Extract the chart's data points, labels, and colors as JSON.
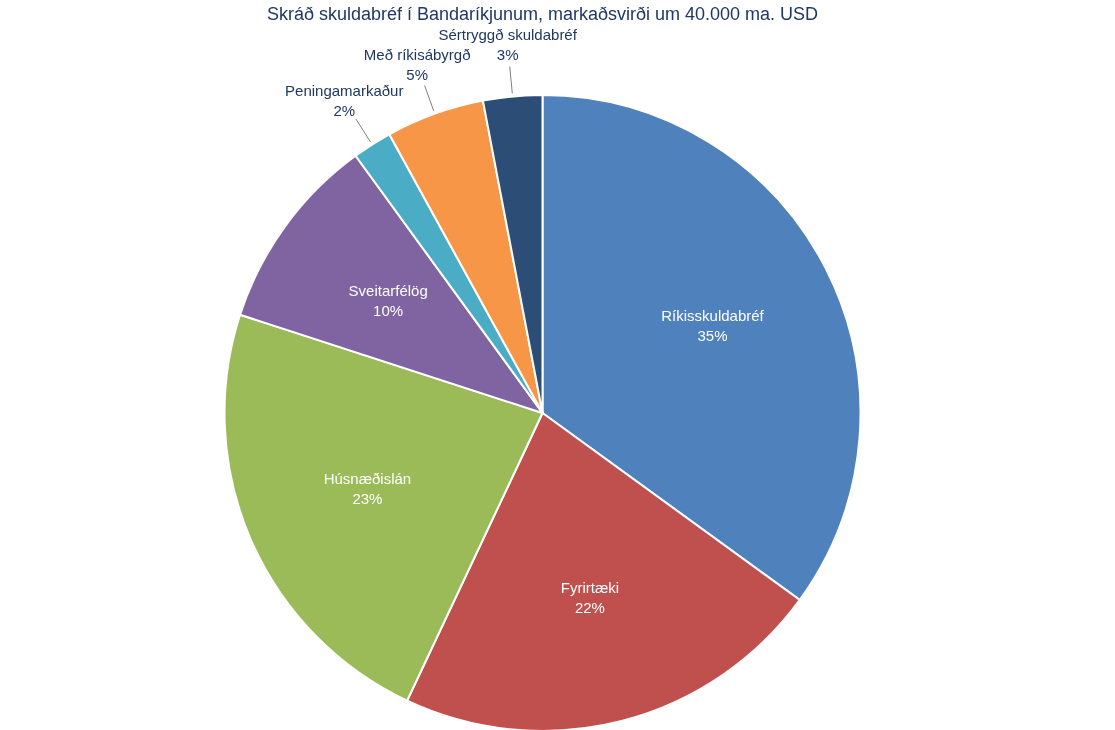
{
  "chart_data": {
    "type": "pie",
    "title": "Skráð skuldabréf í Bandaríkjunum, markaðsvirði um 40.000 ma. USD",
    "categories": [
      "Ríkisskuldabréf",
      "Fyrirtæki",
      "Húsnæðislán",
      "Sveitarfélög",
      "Peningamarkaður",
      "Með ríkisábyrgð",
      "Sértryggð skuldabréf"
    ],
    "values": [
      35,
      22,
      23,
      10,
      2,
      5,
      3
    ],
    "value_labels": [
      "35%",
      "22%",
      "23%",
      "10%",
      "2%",
      "5%",
      "3%"
    ],
    "colors": [
      "#4f81bd",
      "#c0504d",
      "#9bbb59",
      "#8064a2",
      "#4bacc6",
      "#f79646",
      "#2c4d75"
    ],
    "legend": false
  }
}
